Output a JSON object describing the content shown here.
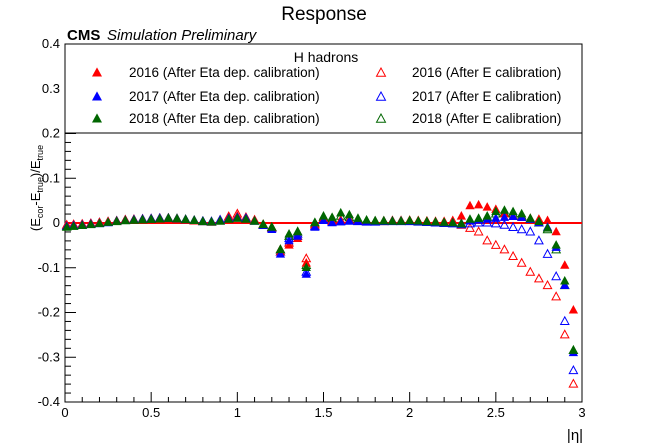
{
  "chart_data": {
    "type": "scatter",
    "title": "Response",
    "cms_label": "CMS",
    "cms_sublabel": "Simulation Preliminary",
    "xlabel": "|η|",
    "ylabel": "(E_cor - E_true)/E_true",
    "xlim": [
      0,
      3
    ],
    "ylim": [
      -0.4,
      0.4
    ],
    "x_ticks": [
      "0",
      "0.5",
      "1",
      "1.5",
      "2",
      "2.5",
      "3"
    ],
    "y_ticks": [
      "-0.4",
      "-0.3",
      "-0.2",
      "-0.1",
      "0",
      "0.1",
      "0.2",
      "0.3",
      "0.4"
    ],
    "grid": false,
    "reference_line_y": 0,
    "legend": {
      "title": "H hadrons",
      "placement": "top"
    },
    "series": [
      {
        "name": "2016 (After Eta dep. calibration)",
        "color": "#ff0000",
        "marker": "filled-triangle",
        "x": [
          0.01,
          0.05,
          0.1,
          0.15,
          0.2,
          0.25,
          0.3,
          0.35,
          0.4,
          0.45,
          0.5,
          0.55,
          0.6,
          0.65,
          0.7,
          0.75,
          0.8,
          0.85,
          0.9,
          0.95,
          1.0,
          1.05,
          1.1,
          1.15,
          1.2,
          1.25,
          1.3,
          1.35,
          1.4,
          1.45,
          1.5,
          1.55,
          1.6,
          1.65,
          1.7,
          1.75,
          1.8,
          1.85,
          1.9,
          1.95,
          2.0,
          2.05,
          2.1,
          2.15,
          2.2,
          2.25,
          2.3,
          2.35,
          2.4,
          2.45,
          2.5,
          2.55,
          2.6,
          2.65,
          2.7,
          2.75,
          2.8,
          2.85,
          2.9,
          2.95
        ],
        "y": [
          -0.005,
          -0.004,
          -0.003,
          -0.001,
          0.001,
          0.003,
          0.004,
          0.007,
          0.008,
          0.008,
          0.009,
          0.01,
          0.01,
          0.009,
          0.006,
          0.004,
          0.003,
          0.002,
          0.005,
          0.012,
          0.015,
          0.01,
          0.006,
          -0.005,
          -0.012,
          -0.065,
          -0.05,
          -0.035,
          -0.09,
          -0.005,
          0.01,
          0.003,
          0.005,
          0.006,
          0.004,
          0.003,
          0.003,
          0.004,
          0.005,
          0.005,
          0.006,
          0.005,
          0.004,
          0.003,
          0.003,
          0.005,
          0.015,
          0.038,
          0.04,
          0.035,
          0.03,
          0.02,
          0.015,
          0.012,
          0.01,
          0.008,
          0.005,
          -0.02,
          -0.095,
          -0.195
        ]
      },
      {
        "name": "2017 (After Eta dep. calibration)",
        "color": "#0000ff",
        "marker": "filled-triangle",
        "x": [
          0.01,
          0.05,
          0.1,
          0.15,
          0.2,
          0.25,
          0.3,
          0.35,
          0.4,
          0.45,
          0.5,
          0.55,
          0.6,
          0.65,
          0.7,
          0.75,
          0.8,
          0.85,
          0.9,
          0.95,
          1.0,
          1.05,
          1.1,
          1.15,
          1.2,
          1.25,
          1.3,
          1.35,
          1.4,
          1.45,
          1.5,
          1.55,
          1.6,
          1.65,
          1.7,
          1.75,
          1.8,
          1.85,
          1.9,
          1.95,
          2.0,
          2.05,
          2.1,
          2.15,
          2.2,
          2.25,
          2.3,
          2.35,
          2.4,
          2.45,
          2.5,
          2.55,
          2.6,
          2.65,
          2.7,
          2.75,
          2.8,
          2.85,
          2.9,
          2.95
        ],
        "y": [
          -0.008,
          -0.006,
          -0.005,
          -0.003,
          -0.002,
          0.0,
          0.003,
          0.005,
          0.007,
          0.008,
          0.009,
          0.01,
          0.01,
          0.009,
          0.007,
          0.005,
          0.004,
          0.003,
          0.006,
          0.01,
          0.012,
          0.01,
          0.004,
          -0.006,
          -0.015,
          -0.07,
          -0.04,
          -0.03,
          -0.115,
          -0.01,
          0.005,
          0.0,
          0.002,
          0.004,
          0.003,
          0.002,
          0.002,
          0.003,
          0.004,
          0.004,
          0.004,
          0.003,
          0.002,
          0.001,
          0.0,
          0.0,
          -0.002,
          0.004,
          0.006,
          0.008,
          0.01,
          0.012,
          0.014,
          0.012,
          0.008,
          0.0,
          -0.01,
          -0.055,
          -0.14,
          -0.29
        ]
      },
      {
        "name": "2018 (After Eta dep. calibration)",
        "color": "#006600",
        "marker": "filled-triangle",
        "x": [
          0.01,
          0.05,
          0.1,
          0.15,
          0.2,
          0.25,
          0.3,
          0.35,
          0.4,
          0.45,
          0.5,
          0.55,
          0.6,
          0.65,
          0.7,
          0.75,
          0.8,
          0.85,
          0.9,
          0.95,
          1.0,
          1.05,
          1.1,
          1.15,
          1.2,
          1.25,
          1.3,
          1.35,
          1.4,
          1.45,
          1.5,
          1.55,
          1.6,
          1.65,
          1.7,
          1.75,
          1.8,
          1.85,
          1.9,
          1.95,
          2.0,
          2.05,
          2.1,
          2.15,
          2.2,
          2.25,
          2.3,
          2.35,
          2.4,
          2.45,
          2.5,
          2.55,
          2.6,
          2.65,
          2.7,
          2.75,
          2.8,
          2.85,
          2.9,
          2.95
        ],
        "y": [
          -0.01,
          -0.008,
          -0.006,
          -0.004,
          -0.002,
          0.001,
          0.003,
          0.005,
          0.006,
          0.007,
          0.008,
          0.009,
          0.01,
          0.009,
          0.007,
          0.005,
          0.003,
          0.002,
          0.004,
          0.008,
          0.01,
          0.008,
          0.004,
          -0.004,
          -0.01,
          -0.06,
          -0.025,
          -0.02,
          -0.1,
          0.0,
          0.015,
          0.012,
          0.022,
          0.018,
          0.01,
          0.006,
          0.004,
          0.004,
          0.004,
          0.004,
          0.005,
          0.004,
          0.003,
          0.002,
          0.001,
          0.0,
          -0.002,
          0.008,
          0.01,
          0.015,
          0.025,
          0.028,
          0.025,
          0.02,
          0.01,
          0.003,
          -0.012,
          -0.05,
          -0.13,
          -0.285
        ]
      },
      {
        "name": "2016 (After E calibration)",
        "color": "#ff0000",
        "marker": "open-triangle",
        "x": [
          0.01,
          0.05,
          0.1,
          0.15,
          0.2,
          0.25,
          0.3,
          0.35,
          0.4,
          0.45,
          0.5,
          0.55,
          0.6,
          0.65,
          0.7,
          0.75,
          0.8,
          0.85,
          0.9,
          0.95,
          1.0,
          1.05,
          1.1,
          1.15,
          1.2,
          1.25,
          1.3,
          1.35,
          1.4,
          1.45,
          1.5,
          1.55,
          1.6,
          1.65,
          1.7,
          1.75,
          1.8,
          1.85,
          1.9,
          1.95,
          2.0,
          2.05,
          2.1,
          2.15,
          2.2,
          2.25,
          2.3,
          2.35,
          2.4,
          2.45,
          2.5,
          2.55,
          2.6,
          2.65,
          2.7,
          2.75,
          2.8,
          2.85,
          2.9,
          2.95
        ],
        "y": [
          -0.005,
          -0.004,
          -0.003,
          -0.002,
          0.0,
          0.002,
          0.004,
          0.006,
          0.007,
          0.008,
          0.009,
          0.01,
          0.01,
          0.009,
          0.007,
          0.005,
          0.003,
          0.002,
          0.006,
          0.014,
          0.02,
          0.012,
          0.006,
          -0.004,
          -0.01,
          -0.06,
          -0.045,
          -0.03,
          -0.08,
          -0.004,
          0.012,
          0.004,
          0.005,
          0.006,
          0.004,
          0.003,
          0.003,
          0.003,
          0.004,
          0.004,
          0.004,
          0.003,
          0.003,
          0.002,
          0.001,
          0.0,
          -0.005,
          -0.012,
          -0.02,
          -0.04,
          -0.05,
          -0.06,
          -0.075,
          -0.09,
          -0.11,
          -0.125,
          -0.14,
          -0.165,
          -0.25,
          -0.36
        ]
      },
      {
        "name": "2017 (After E calibration)",
        "color": "#0000ff",
        "marker": "open-triangle",
        "x": [
          0.01,
          0.05,
          0.1,
          0.15,
          0.2,
          0.25,
          0.3,
          0.35,
          0.4,
          0.45,
          0.5,
          0.55,
          0.6,
          0.65,
          0.7,
          0.75,
          0.8,
          0.85,
          0.9,
          0.95,
          1.0,
          1.05,
          1.1,
          1.15,
          1.2,
          1.25,
          1.3,
          1.35,
          1.4,
          1.45,
          1.5,
          1.55,
          1.6,
          1.65,
          1.7,
          1.75,
          1.8,
          1.85,
          1.9,
          1.95,
          2.0,
          2.05,
          2.1,
          2.15,
          2.2,
          2.25,
          2.3,
          2.35,
          2.4,
          2.45,
          2.5,
          2.55,
          2.6,
          2.65,
          2.7,
          2.75,
          2.8,
          2.85,
          2.9,
          2.95
        ],
        "y": [
          -0.007,
          -0.006,
          -0.004,
          -0.002,
          0.0,
          0.002,
          0.004,
          0.006,
          0.007,
          0.008,
          0.009,
          0.01,
          0.01,
          0.009,
          0.007,
          0.005,
          0.003,
          0.002,
          0.006,
          0.01,
          0.013,
          0.01,
          0.004,
          -0.005,
          -0.012,
          -0.065,
          -0.035,
          -0.025,
          -0.11,
          -0.008,
          0.008,
          0.002,
          0.003,
          0.004,
          0.003,
          0.002,
          0.002,
          0.003,
          0.003,
          0.003,
          0.003,
          0.002,
          0.001,
          0.0,
          -0.001,
          -0.002,
          -0.004,
          -0.002,
          0.0,
          0.0,
          -0.002,
          -0.005,
          -0.01,
          -0.015,
          -0.02,
          -0.04,
          -0.07,
          -0.12,
          -0.22,
          -0.33
        ]
      },
      {
        "name": "2018 (After E calibration)",
        "color": "#006600",
        "marker": "open-triangle",
        "x": [
          0.01,
          0.05,
          0.1,
          0.15,
          0.2,
          0.25,
          0.3,
          0.35,
          0.4,
          0.45,
          0.5,
          0.55,
          0.6,
          0.65,
          0.7,
          0.75,
          0.8,
          0.85,
          0.9,
          0.95,
          1.0,
          1.05,
          1.1,
          1.15,
          1.2,
          1.25,
          1.3,
          1.35,
          1.4,
          1.45,
          1.5,
          1.55,
          1.6,
          1.65,
          1.7,
          1.75,
          1.8,
          1.85,
          1.9,
          1.95,
          2.0,
          2.05,
          2.1,
          2.15,
          2.2,
          2.25,
          2.3,
          2.35,
          2.4,
          2.45,
          2.5,
          2.55,
          2.6,
          2.65,
          2.7,
          2.75,
          2.8,
          2.85,
          2.9,
          2.95
        ],
        "y": [
          -0.009,
          -0.007,
          -0.005,
          -0.003,
          -0.001,
          0.001,
          0.003,
          0.005,
          0.006,
          0.007,
          0.008,
          0.009,
          0.01,
          0.009,
          0.007,
          0.005,
          0.003,
          0.002,
          0.004,
          0.009,
          0.012,
          0.009,
          0.004,
          -0.004,
          -0.01,
          -0.06,
          -0.03,
          -0.02,
          -0.095,
          0.0,
          0.012,
          0.01,
          0.015,
          0.012,
          0.008,
          0.005,
          0.004,
          0.004,
          0.004,
          0.004,
          0.004,
          0.003,
          0.002,
          0.001,
          0.0,
          0.0,
          -0.002,
          0.005,
          0.008,
          0.012,
          0.02,
          0.022,
          0.02,
          0.015,
          0.008,
          0.0,
          -0.015,
          -0.06,
          -0.14,
          -0.285
        ]
      }
    ]
  }
}
